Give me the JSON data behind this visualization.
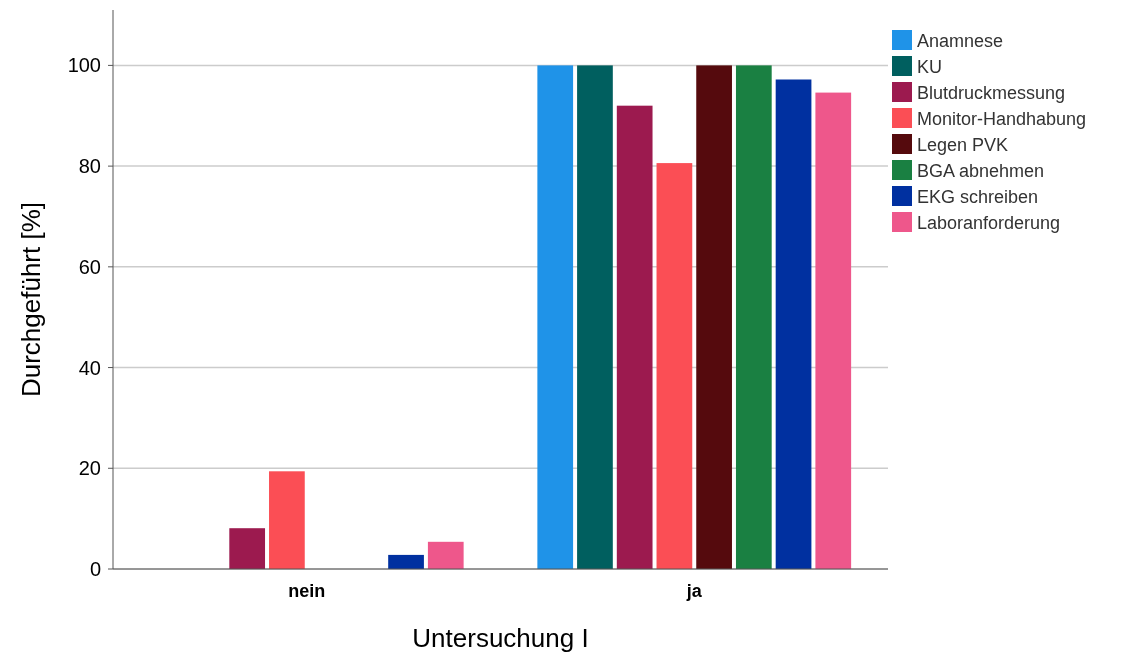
{
  "chart_data": {
    "type": "bar",
    "xlabel": "Untersuchung I",
    "ylabel": "Durchgeführt [%]",
    "categories": [
      "nein",
      "ja"
    ],
    "series": [
      {
        "name": "Anamnese",
        "color": "#1f93e8",
        "values": [
          0,
          100
        ]
      },
      {
        "name": "KU",
        "color": "#005f5f",
        "values": [
          0,
          100
        ]
      },
      {
        "name": "Blutdruckmessung",
        "color": "#9c1a4f",
        "values": [
          8.1,
          92
        ]
      },
      {
        "name": "Monitor-Handhabung",
        "color": "#fb4e55",
        "values": [
          19.4,
          80.6
        ]
      },
      {
        "name": "Legen PVK",
        "color": "#550a0d",
        "values": [
          0,
          100
        ]
      },
      {
        "name": "BGA abnehmen",
        "color": "#1a8042",
        "values": [
          0,
          100
        ]
      },
      {
        "name": "EKG schreiben",
        "color": "#0030a0",
        "values": [
          2.8,
          97.2
        ]
      },
      {
        "name": "Laboranforderung",
        "color": "#ee578b",
        "values": [
          5.4,
          94.6
        ]
      }
    ],
    "ylim": [
      0,
      111
    ],
    "yticks": [
      0,
      20,
      40,
      60,
      80,
      100
    ],
    "grid": "y",
    "legend": "top right"
  }
}
